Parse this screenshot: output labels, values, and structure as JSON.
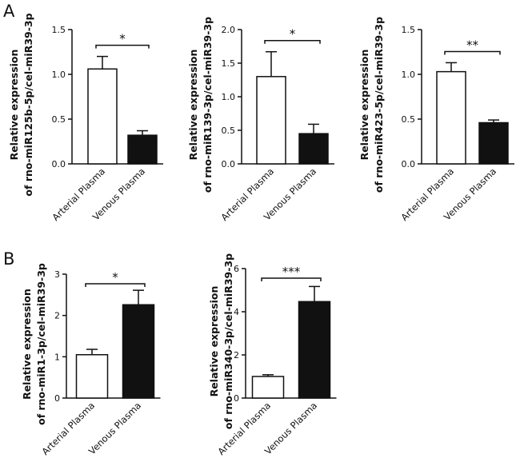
{
  "panels": {
    "a": "A",
    "b": "B"
  },
  "chart_data": [
    {
      "type": "bar",
      "ylabel_lines": [
        "Relative expression",
        "of rno-miR125b-5p/cel-miR39-3p"
      ],
      "categories": [
        "Arterial Plasma",
        "Venous Plasma"
      ],
      "values": [
        1.06,
        0.32
      ],
      "errors": [
        0.14,
        0.05
      ],
      "fills": [
        "#ffffff",
        "#111111"
      ],
      "ylim": [
        0,
        1.5
      ],
      "yticks": [
        "0.0",
        "0.5",
        "1.0",
        "1.5"
      ],
      "tick_values": [
        0,
        0.5,
        1.0,
        1.5
      ],
      "significance": "*"
    },
    {
      "type": "bar",
      "ylabel_lines": [
        "Relative expression",
        "of rno-miR139-3p/cel-miR39-3p"
      ],
      "categories": [
        "Arterial Plasma",
        "Venous Plasma"
      ],
      "values": [
        1.3,
        0.45
      ],
      "errors": [
        0.37,
        0.14
      ],
      "fills": [
        "#ffffff",
        "#111111"
      ],
      "ylim": [
        0,
        2.0
      ],
      "yticks": [
        "0.0",
        "0.5",
        "1.0",
        "1.5",
        "2.0"
      ],
      "tick_values": [
        0,
        0.5,
        1.0,
        1.5,
        2.0
      ],
      "significance": "*"
    },
    {
      "type": "bar",
      "ylabel_lines": [
        "Relative expression",
        "of rno-miR423-5p/cel-miR39-3p"
      ],
      "categories": [
        "Arterial Plasma",
        "Venous Plasma"
      ],
      "values": [
        1.03,
        0.46
      ],
      "errors": [
        0.1,
        0.03
      ],
      "fills": [
        "#ffffff",
        "#111111"
      ],
      "ylim": [
        0,
        1.5
      ],
      "yticks": [
        "0.0",
        "0.5",
        "1.0",
        "1.5"
      ],
      "tick_values": [
        0,
        0.5,
        1.0,
        1.5
      ],
      "significance": "**"
    },
    {
      "type": "bar",
      "ylabel_lines": [
        "Relative expression",
        "of rno-miR1-3p/cel-miR39-3p"
      ],
      "categories": [
        "Arterial Plasma",
        "Venous Plasma"
      ],
      "values": [
        1.05,
        2.26
      ],
      "errors": [
        0.13,
        0.35
      ],
      "fills": [
        "#ffffff",
        "#111111"
      ],
      "ylim": [
        0,
        3
      ],
      "yticks": [
        "0",
        "1",
        "2",
        "3"
      ],
      "tick_values": [
        0,
        1,
        2,
        3
      ],
      "significance": "*"
    },
    {
      "type": "bar",
      "ylabel_lines": [
        "Relative expression",
        "of rno-miR340-3p/cel-miR39-3p"
      ],
      "categories": [
        "Arterial Plasma",
        "Venous Plasma"
      ],
      "values": [
        1.0,
        4.47
      ],
      "errors": [
        0.08,
        0.7
      ],
      "fills": [
        "#ffffff",
        "#111111"
      ],
      "ylim": [
        0,
        6
      ],
      "yticks": [
        "0",
        "2",
        "4",
        "6"
      ],
      "tick_values": [
        0,
        2,
        4,
        6
      ],
      "significance": "***"
    }
  ]
}
